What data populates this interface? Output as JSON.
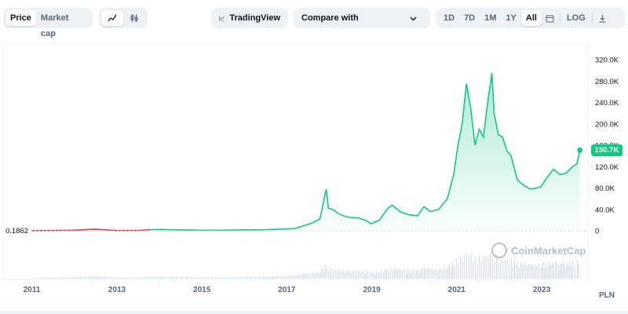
{
  "toolbar": {
    "metric_tabs": [
      "Price",
      "Market cap"
    ],
    "active_metric": "Price",
    "chart_types": [
      "line-chart-icon",
      "candlestick-icon"
    ],
    "tradingview_label": "TradingView",
    "compare_label": "Compare with",
    "ranges": [
      "1D",
      "7D",
      "1M",
      "1Y",
      "All"
    ],
    "active_range": "All",
    "log_label": "LOG",
    "icons": {
      "calendar": "calendar-icon",
      "download": "download-icon",
      "compare": "chevron-down-icon",
      "tradingview": "tradingview-icon"
    }
  },
  "chart": {
    "start_price_label": "0.1862",
    "current_price_label": "150.7K",
    "currency": "PLN",
    "watermark": "CoinMarketCap",
    "colors": {
      "up": "#16c784",
      "down": "#ea3943",
      "volume": "#cfd6e4"
    }
  },
  "chart_data": {
    "type": "area",
    "x_unit": "year",
    "x": [
      2011.0,
      2011.5,
      2012.0,
      2012.5,
      2013.0,
      2013.5,
      2013.8,
      2014.0,
      2014.3,
      2014.6,
      2015.0,
      2015.5,
      2016.0,
      2016.5,
      2016.9,
      2017.2,
      2017.4,
      2017.6,
      2017.8,
      2017.95,
      2018.0,
      2018.1,
      2018.2,
      2018.35,
      2018.5,
      2018.7,
      2018.9,
      2019.0,
      2019.2,
      2019.4,
      2019.5,
      2019.7,
      2019.9,
      2020.1,
      2020.25,
      2020.4,
      2020.6,
      2020.8,
      2020.95,
      2021.05,
      2021.15,
      2021.25,
      2021.35,
      2021.45,
      2021.55,
      2021.65,
      2021.75,
      2021.85,
      2021.9,
      2022.0,
      2022.1,
      2022.2,
      2022.3,
      2022.45,
      2022.6,
      2022.75,
      2022.9,
      2023.0,
      2023.15,
      2023.3,
      2023.45,
      2023.6,
      2023.75,
      2023.85,
      2023.92
    ],
    "values": [
      0.2,
      0.5,
      1,
      3,
      0.5,
      0.4,
      2,
      2.5,
      2,
      1.6,
      1,
      1,
      1.5,
      2,
      3,
      4,
      9,
      14,
      22,
      78,
      42,
      40,
      34,
      28,
      25,
      24,
      19,
      13,
      20,
      42,
      48,
      35,
      30,
      28,
      45,
      36,
      40,
      60,
      105,
      160,
      200,
      275,
      230,
      160,
      190,
      175,
      240,
      295,
      220,
      180,
      175,
      150,
      140,
      95,
      85,
      78,
      80,
      82,
      100,
      115,
      105,
      108,
      120,
      125,
      150.7
    ],
    "volume_note": "volume bars shown below price area",
    "x_ticks": [
      "2011",
      "2013",
      "2015",
      "2017",
      "2019",
      "2021",
      "2023"
    ],
    "y_ticks": [
      "0",
      "40.0K",
      "80.0K",
      "120.0K",
      "160.0K",
      "200.0K",
      "240.0K",
      "280.0K",
      "320.0K"
    ],
    "y_unit": "PLN (thousands)",
    "ylim": [
      0,
      320
    ],
    "xlim": [
      2010.97,
      2024.0
    ],
    "grid": false,
    "legend": "none"
  }
}
